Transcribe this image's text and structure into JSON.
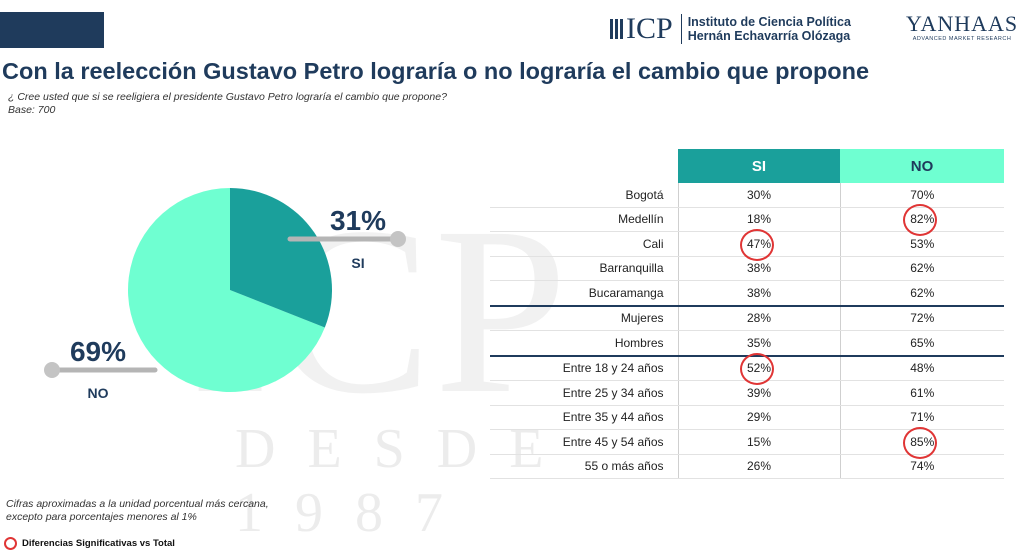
{
  "header": {
    "logo_icp_text": "ICP",
    "institute_line1": "Instituto de Ciencia Política",
    "institute_line2": "Hernán Echavarría Olózaga",
    "yanhaas_name": "YANHAAS",
    "yanhaas_tagline": "ADVANCED MARKET RESEARCH"
  },
  "title": "Con la reelección Gustavo Petro lograría o no lograría el cambio que propone",
  "question": "¿ Cree usted que si se reeligiera el presidente Gustavo Petro lograría el cambio que propone?",
  "base": "Base: 700",
  "watermark": {
    "big": "ICP",
    "small": "DESDE 1987"
  },
  "colors": {
    "si": "#1aa09b",
    "no": "#6fffd1",
    "navy": "#1f3b5c",
    "highlight": "#e03535"
  },
  "chart_data": [
    {
      "type": "pie",
      "title": "",
      "slices": [
        {
          "label": "SI",
          "value": 31,
          "value_label": "31%"
        },
        {
          "label": "NO",
          "value": 69,
          "value_label": "69%"
        }
      ]
    },
    {
      "type": "table",
      "columns": [
        "SI",
        "NO"
      ],
      "rows": [
        {
          "label": "Bogotá",
          "si": "30%",
          "no": "70%",
          "highlight": ""
        },
        {
          "label": "Medellín",
          "si": "18%",
          "no": "82%",
          "highlight": "no"
        },
        {
          "label": "Cali",
          "si": "47%",
          "no": "53%",
          "highlight": "si"
        },
        {
          "label": "Barranquilla",
          "si": "38%",
          "no": "62%",
          "highlight": ""
        },
        {
          "label": "Bucaramanga",
          "si": "38%",
          "no": "62%",
          "highlight": ""
        },
        {
          "label": "Mujeres",
          "si": "28%",
          "no": "72%",
          "highlight": ""
        },
        {
          "label": "Hombres",
          "si": "35%",
          "no": "65%",
          "highlight": ""
        },
        {
          "label": "Entre 18 y 24 años",
          "si": "52%",
          "no": "48%",
          "highlight": "si"
        },
        {
          "label": "Entre 25 y 34 años",
          "si": "39%",
          "no": "61%",
          "highlight": ""
        },
        {
          "label": "Entre 35 y 44 años",
          "si": "29%",
          "no": "71%",
          "highlight": ""
        },
        {
          "label": "Entre 45 y 54 años",
          "si": "15%",
          "no": "85%",
          "highlight": "no"
        },
        {
          "label": "55 o más años",
          "si": "26%",
          "no": "74%",
          "highlight": ""
        }
      ],
      "group_breaks_after": [
        "Bucaramanga",
        "Hombres"
      ]
    }
  ],
  "footnote": "Cifras aproximadas a la unidad porcentual más cercana, excepto para porcentajes menores al 1%",
  "legend": {
    "significance_label": "Diferencias Significativas vs Total"
  }
}
